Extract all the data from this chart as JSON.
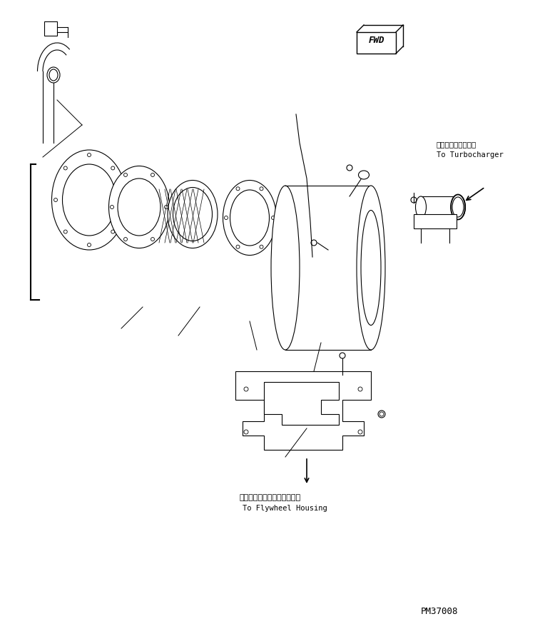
{
  "title": "",
  "background_color": "#ffffff",
  "line_color": "#000000",
  "text_color": "#000000",
  "fwd_label": "FWD",
  "turbo_label_jp": "ターボチャージャヘ",
  "turbo_label_en": "To Turbocharger",
  "flywheel_label_jp": "フライホイールハウジングヘ",
  "flywheel_label_en": "To Flywheel Housing",
  "part_number": "PM37008",
  "fig_width": 7.5,
  "fig_height": 8.74,
  "dpi": 100
}
